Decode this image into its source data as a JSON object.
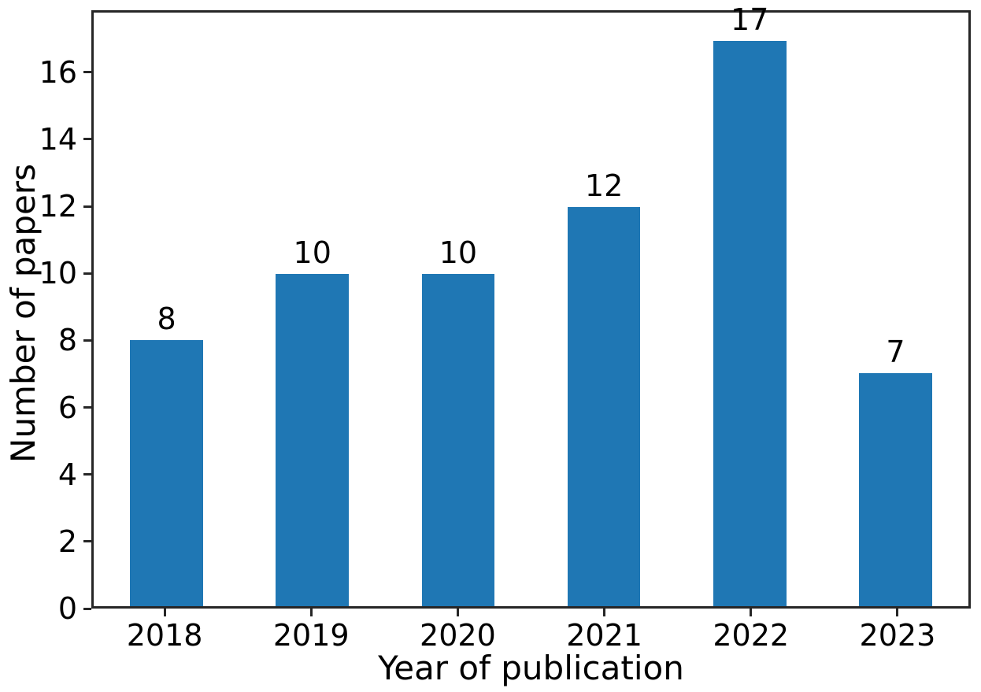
{
  "chart_data": {
    "type": "bar",
    "categories": [
      "2018",
      "2019",
      "2020",
      "2021",
      "2022",
      "2023"
    ],
    "values": [
      8,
      10,
      10,
      12,
      17,
      7
    ],
    "value_labels": [
      "8",
      "10",
      "10",
      "12",
      "17",
      "7"
    ],
    "title": "",
    "xlabel": "Year of publication",
    "ylabel": "Number of papers",
    "ylim": [
      0,
      17.85
    ],
    "yticks": [
      0,
      2,
      4,
      6,
      8,
      10,
      12,
      14,
      16
    ],
    "grid": false,
    "legend_position": "none",
    "bar_color": "#1f77b4",
    "axis_color": "#262626",
    "text_color": "#000000",
    "background_color": "#ffffff"
  }
}
